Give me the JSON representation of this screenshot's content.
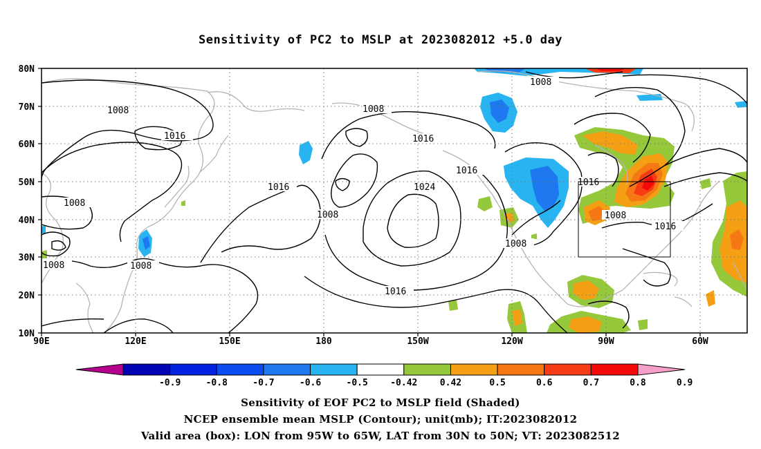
{
  "title": "Sensitivity of PC2 to MSLP at 2023082012 +5.0 day",
  "axes": {
    "lat_labels": [
      "80N",
      "70N",
      "60N",
      "50N",
      "40N",
      "30N",
      "20N",
      "10N"
    ],
    "lon_labels": [
      "90E",
      "120E",
      "150E",
      "180",
      "150W",
      "120W",
      "90W",
      "60W"
    ]
  },
  "contour_labels": [
    "1008",
    "1016",
    "1024"
  ],
  "colorbar": {
    "labels": [
      "-0.9",
      "-0.8",
      "-0.7",
      "-0.6",
      "-0.5",
      "-0.42",
      "0.42",
      "0.5",
      "0.6",
      "0.7",
      "0.8",
      "0.9"
    ],
    "colors": [
      "#b4008c",
      "#0000b4",
      "#0022e0",
      "#0a4cf0",
      "#1e78f0",
      "#28b4f0",
      "#ffffff",
      "#96c83c",
      "#f5a014",
      "#f57814",
      "#f53c14",
      "#f50a0a",
      "#f5a0c8"
    ]
  },
  "captions": {
    "line1": "Sensitivity of EOF PC2 to MSLP field (Shaded)",
    "line2": "NCEP ensemble mean MSLP (Contour); unit(mb); IT:2023082012",
    "line3": "Valid area (box): LON from 95W to 65W, LAT from 30N to 50N; VT: 2023082512"
  }
}
